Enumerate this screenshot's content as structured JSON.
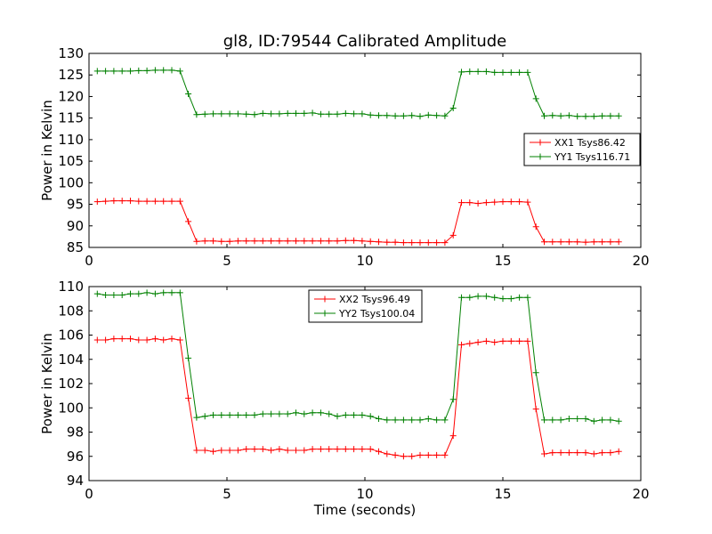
{
  "chart_data": [
    {
      "type": "line",
      "title": "gl8, ID:79544 Calibrated Amplitude",
      "xlabel": "",
      "ylabel": "Power in Kelvin",
      "xlim": [
        0,
        20
      ],
      "ylim": [
        85,
        130
      ],
      "xticks": [
        0,
        5,
        10,
        15,
        20
      ],
      "yticks": [
        85,
        90,
        95,
        100,
        105,
        110,
        115,
        120,
        125,
        130
      ],
      "grid": false,
      "legend": "center-right",
      "series": [
        {
          "name": "XX1 Tsys86.42",
          "color": "#ff0000",
          "x": [
            0.3,
            0.6,
            0.9,
            1.2,
            1.5,
            1.8,
            2.1,
            2.4,
            2.7,
            3.0,
            3.3,
            3.6,
            3.9,
            4.2,
            4.5,
            4.8,
            5.1,
            5.4,
            5.7,
            6.0,
            6.3,
            6.6,
            6.9,
            7.2,
            7.5,
            7.8,
            8.1,
            8.4,
            8.7,
            9.0,
            9.3,
            9.6,
            9.9,
            10.2,
            10.5,
            10.8,
            11.1,
            11.4,
            11.7,
            12.0,
            12.3,
            12.6,
            12.9,
            13.2,
            13.5,
            13.8,
            14.1,
            14.4,
            14.7,
            15.0,
            15.3,
            15.6,
            15.9,
            16.2,
            16.5,
            16.8,
            17.1,
            17.4,
            17.7,
            18.0,
            18.3,
            18.6,
            18.9,
            19.2
          ],
          "y": [
            95.6,
            95.7,
            95.8,
            95.8,
            95.8,
            95.7,
            95.7,
            95.7,
            95.7,
            95.7,
            95.7,
            91.0,
            86.4,
            86.5,
            86.5,
            86.4,
            86.4,
            86.5,
            86.5,
            86.5,
            86.5,
            86.5,
            86.5,
            86.5,
            86.5,
            86.5,
            86.5,
            86.5,
            86.5,
            86.5,
            86.6,
            86.6,
            86.5,
            86.4,
            86.3,
            86.2,
            86.2,
            86.1,
            86.1,
            86.1,
            86.1,
            86.1,
            86.1,
            87.8,
            95.4,
            95.4,
            95.2,
            95.4,
            95.5,
            95.6,
            95.6,
            95.6,
            95.5,
            89.8,
            86.3,
            86.3,
            86.3,
            86.3,
            86.3,
            86.2,
            86.3,
            86.3,
            86.3,
            86.3
          ]
        },
        {
          "name": "YY1 Tsys116.71",
          "color": "#008000",
          "x": [
            0.3,
            0.6,
            0.9,
            1.2,
            1.5,
            1.8,
            2.1,
            2.4,
            2.7,
            3.0,
            3.3,
            3.6,
            3.9,
            4.2,
            4.5,
            4.8,
            5.1,
            5.4,
            5.7,
            6.0,
            6.3,
            6.6,
            6.9,
            7.2,
            7.5,
            7.8,
            8.1,
            8.4,
            8.7,
            9.0,
            9.3,
            9.6,
            9.9,
            10.2,
            10.5,
            10.8,
            11.1,
            11.4,
            11.7,
            12.0,
            12.3,
            12.6,
            12.9,
            13.2,
            13.5,
            13.8,
            14.1,
            14.4,
            14.7,
            15.0,
            15.3,
            15.6,
            15.9,
            16.2,
            16.5,
            16.8,
            17.1,
            17.4,
            17.7,
            18.0,
            18.3,
            18.6,
            18.9,
            19.2
          ],
          "y": [
            125.9,
            125.9,
            125.9,
            125.9,
            125.9,
            126.0,
            126.0,
            126.1,
            126.1,
            126.1,
            125.9,
            120.6,
            115.8,
            115.9,
            116.0,
            116.0,
            116.0,
            116.0,
            115.9,
            115.8,
            116.1,
            116.0,
            116.0,
            116.1,
            116.1,
            116.1,
            116.2,
            115.9,
            115.9,
            115.9,
            116.1,
            116.0,
            116.0,
            115.7,
            115.6,
            115.6,
            115.5,
            115.5,
            115.6,
            115.4,
            115.7,
            115.6,
            115.5,
            117.3,
            125.7,
            125.8,
            125.8,
            125.8,
            125.6,
            125.6,
            125.6,
            125.6,
            125.6,
            119.5,
            115.5,
            115.6,
            115.5,
            115.6,
            115.4,
            115.4,
            115.4,
            115.5,
            115.5,
            115.5
          ]
        }
      ]
    },
    {
      "type": "line",
      "title": "",
      "xlabel": "Time (seconds)",
      "ylabel": "Power in Kelvin",
      "xlim": [
        0,
        20
      ],
      "ylim": [
        94,
        110
      ],
      "xticks": [
        0,
        5,
        10,
        15,
        20
      ],
      "yticks": [
        94,
        96,
        98,
        100,
        102,
        104,
        106,
        108,
        110
      ],
      "grid": false,
      "legend": "top-center",
      "series": [
        {
          "name": "XX2 Tsys96.49",
          "color": "#ff0000",
          "x": [
            0.3,
            0.6,
            0.9,
            1.2,
            1.5,
            1.8,
            2.1,
            2.4,
            2.7,
            3.0,
            3.3,
            3.6,
            3.9,
            4.2,
            4.5,
            4.8,
            5.1,
            5.4,
            5.7,
            6.0,
            6.3,
            6.6,
            6.9,
            7.2,
            7.5,
            7.8,
            8.1,
            8.4,
            8.7,
            9.0,
            9.3,
            9.6,
            9.9,
            10.2,
            10.5,
            10.8,
            11.1,
            11.4,
            11.7,
            12.0,
            12.3,
            12.6,
            12.9,
            13.2,
            13.5,
            13.8,
            14.1,
            14.4,
            14.7,
            15.0,
            15.3,
            15.6,
            15.9,
            16.2,
            16.5,
            16.8,
            17.1,
            17.4,
            17.7,
            18.0,
            18.3,
            18.6,
            18.9,
            19.2
          ],
          "y": [
            105.6,
            105.6,
            105.7,
            105.7,
            105.7,
            105.6,
            105.6,
            105.7,
            105.6,
            105.7,
            105.6,
            100.8,
            96.5,
            96.5,
            96.4,
            96.5,
            96.5,
            96.5,
            96.6,
            96.6,
            96.6,
            96.5,
            96.6,
            96.5,
            96.5,
            96.5,
            96.6,
            96.6,
            96.6,
            96.6,
            96.6,
            96.6,
            96.6,
            96.6,
            96.4,
            96.2,
            96.1,
            96.0,
            96.0,
            96.1,
            96.1,
            96.1,
            96.1,
            97.7,
            105.2,
            105.3,
            105.4,
            105.5,
            105.4,
            105.5,
            105.5,
            105.5,
            105.5,
            99.9,
            96.2,
            96.3,
            96.3,
            96.3,
            96.3,
            96.3,
            96.2,
            96.3,
            96.3,
            96.4
          ]
        },
        {
          "name": "YY2 Tsys100.04",
          "color": "#008000",
          "x": [
            0.3,
            0.6,
            0.9,
            1.2,
            1.5,
            1.8,
            2.1,
            2.4,
            2.7,
            3.0,
            3.3,
            3.6,
            3.9,
            4.2,
            4.5,
            4.8,
            5.1,
            5.4,
            5.7,
            6.0,
            6.3,
            6.6,
            6.9,
            7.2,
            7.5,
            7.8,
            8.1,
            8.4,
            8.7,
            9.0,
            9.3,
            9.6,
            9.9,
            10.2,
            10.5,
            10.8,
            11.1,
            11.4,
            11.7,
            12.0,
            12.3,
            12.6,
            12.9,
            13.2,
            13.5,
            13.8,
            14.1,
            14.4,
            14.7,
            15.0,
            15.3,
            15.6,
            15.9,
            16.2,
            16.5,
            16.8,
            17.1,
            17.4,
            17.7,
            18.0,
            18.3,
            18.6,
            18.9,
            19.2
          ],
          "y": [
            109.4,
            109.3,
            109.3,
            109.3,
            109.4,
            109.4,
            109.5,
            109.4,
            109.5,
            109.5,
            109.5,
            104.1,
            99.2,
            99.3,
            99.4,
            99.4,
            99.4,
            99.4,
            99.4,
            99.4,
            99.5,
            99.5,
            99.5,
            99.5,
            99.6,
            99.5,
            99.6,
            99.6,
            99.5,
            99.3,
            99.4,
            99.4,
            99.4,
            99.3,
            99.1,
            99.0,
            99.0,
            99.0,
            99.0,
            99.0,
            99.1,
            99.0,
            99.0,
            100.7,
            109.1,
            109.1,
            109.2,
            109.2,
            109.1,
            109.0,
            109.0,
            109.1,
            109.1,
            102.9,
            99.0,
            99.0,
            99.0,
            99.1,
            99.1,
            99.1,
            98.9,
            99.0,
            99.0,
            98.9
          ]
        }
      ]
    }
  ]
}
